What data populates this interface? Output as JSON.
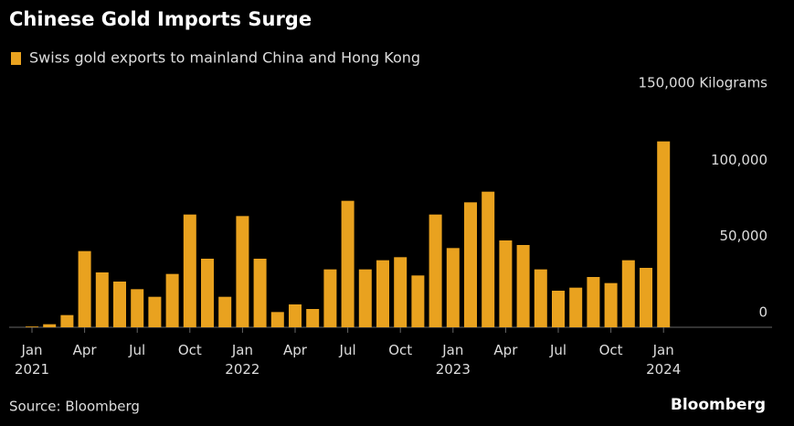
{
  "chart_data": {
    "type": "bar",
    "title": "Chinese Gold Imports Surge",
    "legend_label": "Swiss gold exports to mainland China and Hong Kong",
    "source": "Source: Bloomberg",
    "brand": "Bloomberg",
    "color": "#e9a21f",
    "categories": [
      "Jan 2021",
      null,
      null,
      "Apr",
      null,
      null,
      "Jul",
      null,
      null,
      "Oct",
      null,
      null,
      "Jan 2022",
      null,
      null,
      "Apr",
      null,
      null,
      "Jul",
      null,
      null,
      "Oct",
      null,
      null,
      "Jan 2023",
      null,
      null,
      "Apr",
      null,
      null,
      "Jul",
      null,
      null,
      "Oct",
      null,
      null,
      "Jan 2024"
    ],
    "values": [
      500,
      2000,
      8000,
      50000,
      36000,
      30000,
      25000,
      20000,
      35000,
      74000,
      45000,
      20000,
      73000,
      45000,
      10000,
      15000,
      12000,
      38000,
      83000,
      38000,
      44000,
      46000,
      34000,
      74000,
      52000,
      82000,
      89000,
      57000,
      54000,
      38000,
      24000,
      26000,
      33000,
      29000,
      44000,
      39000,
      122000
    ],
    "ylim": [
      0,
      150000
    ],
    "yticks": [
      0,
      {
        "value": 50000,
        "label": "50,000"
      },
      {
        "value": 100000,
        "label": "100,000"
      },
      {
        "value": 150000,
        "label": "150,000 Kilograms"
      }
    ],
    "grid": false
  }
}
